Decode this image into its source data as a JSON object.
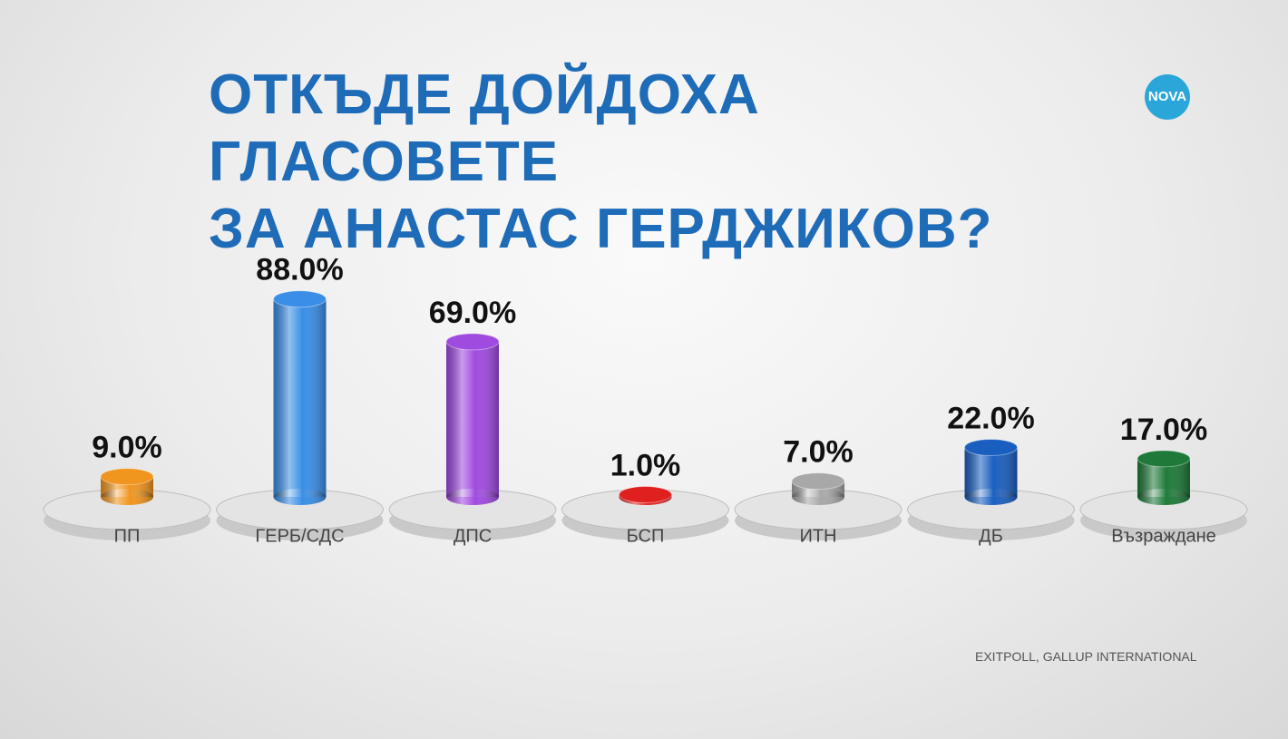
{
  "chart_data": {
    "type": "bar",
    "title": "ОТКЪДЕ ДОЙДОХА ГЛАСОВЕТЕ\nЗА АНАСТАС ГЕРДЖИКОВ?",
    "logo": "NOVA",
    "source": "EXITPOLL, GALLUP INTERNATIONAL",
    "categories": [
      "ПП",
      "ГЕРБ/СДС",
      "ДПС",
      "БСП",
      "ИТН",
      "ДБ",
      "Възраждане"
    ],
    "values": [
      9,
      88,
      69,
      1,
      7,
      22,
      17
    ],
    "value_labels": [
      "9.0%",
      "88.0%",
      "69.0%",
      "1.0%",
      "7.0%",
      "22.0%",
      "17.0%"
    ],
    "colors": [
      "#f0951e",
      "#3a8ee6",
      "#a04be0",
      "#e0201e",
      "#a8a8a8",
      "#1a5fc0",
      "#1f7a3a"
    ]
  }
}
